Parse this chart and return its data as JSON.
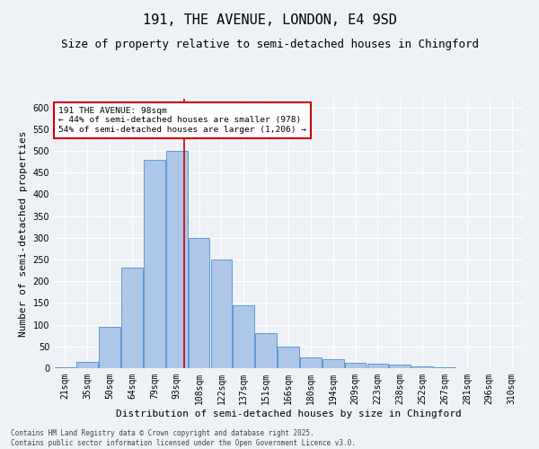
{
  "title": "191, THE AVENUE, LONDON, E4 9SD",
  "subtitle": "Size of property relative to semi-detached houses in Chingford",
  "xlabel": "Distribution of semi-detached houses by size in Chingford",
  "ylabel": "Number of semi-detached properties",
  "footer": "Contains HM Land Registry data © Crown copyright and database right 2025.\nContains public sector information licensed under the Open Government Licence v3.0.",
  "categories": [
    "21sqm",
    "35sqm",
    "50sqm",
    "64sqm",
    "79sqm",
    "93sqm",
    "108sqm",
    "122sqm",
    "137sqm",
    "151sqm",
    "166sqm",
    "180sqm",
    "194sqm",
    "209sqm",
    "223sqm",
    "238sqm",
    "252sqm",
    "267sqm",
    "281sqm",
    "296sqm",
    "310sqm"
  ],
  "values": [
    2,
    15,
    95,
    232,
    480,
    500,
    300,
    250,
    145,
    80,
    50,
    25,
    20,
    12,
    10,
    8,
    5,
    2,
    1,
    0,
    0
  ],
  "bar_color": "#aec6e8",
  "bar_edge_color": "#5b9bd5",
  "pct_smaller": "44%",
  "pct_smaller_n": "978",
  "pct_larger": "54%",
  "pct_larger_n": "1,206",
  "annotation_box_color": "#cc0000",
  "ylim": [
    0,
    620
  ],
  "yticks": [
    0,
    50,
    100,
    150,
    200,
    250,
    300,
    350,
    400,
    450,
    500,
    550,
    600
  ],
  "bg_color": "#eef2f7",
  "grid_color": "#ffffff",
  "title_fontsize": 11,
  "subtitle_fontsize": 9,
  "label_fontsize": 8,
  "tick_fontsize": 7,
  "footer_fontsize": 5.5
}
